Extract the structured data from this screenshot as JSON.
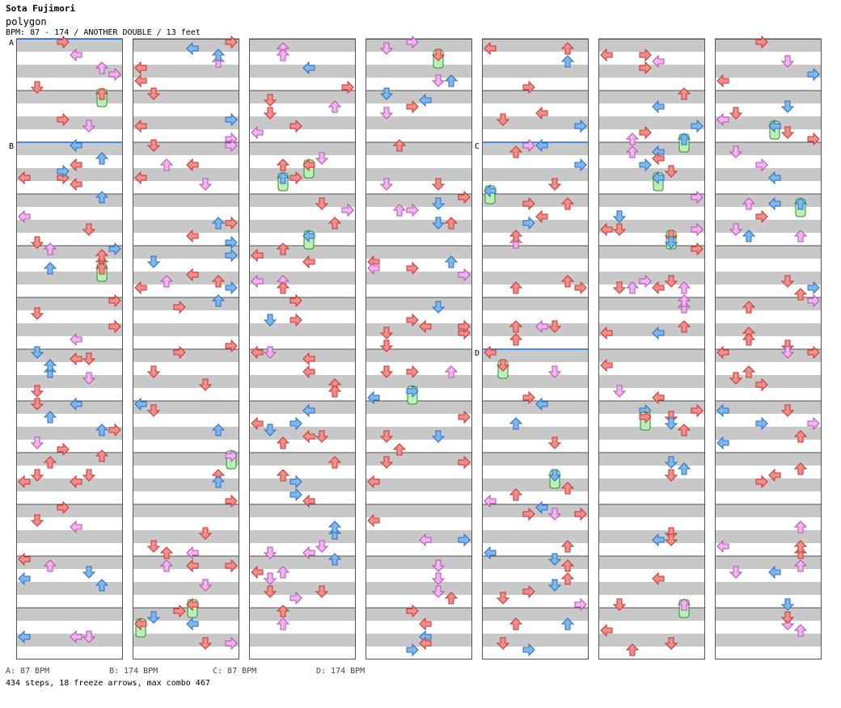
{
  "header": {
    "artist": "Sota Fujimori",
    "title": "polygon",
    "meta": "BPM: 87 - 174 / ANOTHER DOUBLE / 13 feet"
  },
  "section_markers": [
    "A",
    "B",
    "C",
    "D"
  ],
  "bpm_legend": [
    {
      "text": "A: 87 BPM"
    },
    {
      "text": "B: 174 BPM"
    },
    {
      "text": "C: 87 BPM"
    },
    {
      "text": "D: 174 BPM"
    }
  ],
  "summary": "434 steps, 18 freeze arrows, max combo 467",
  "colors": {
    "stripe_gray": "#c8c8c8",
    "measure_line": "#555555",
    "section_line": "#1f6fd6",
    "arrow_red": "#f48c8c",
    "arrow_red_border": "#c0392b",
    "arrow_blue": "#7cb7f2",
    "arrow_blue_border": "#2a6fb8",
    "arrow_pink": "#f3b3f3",
    "arrow_pink_border": "#b050b0",
    "freeze_green": "#b8f0b8",
    "freeze_border": "#2e8b2e"
  }
}
